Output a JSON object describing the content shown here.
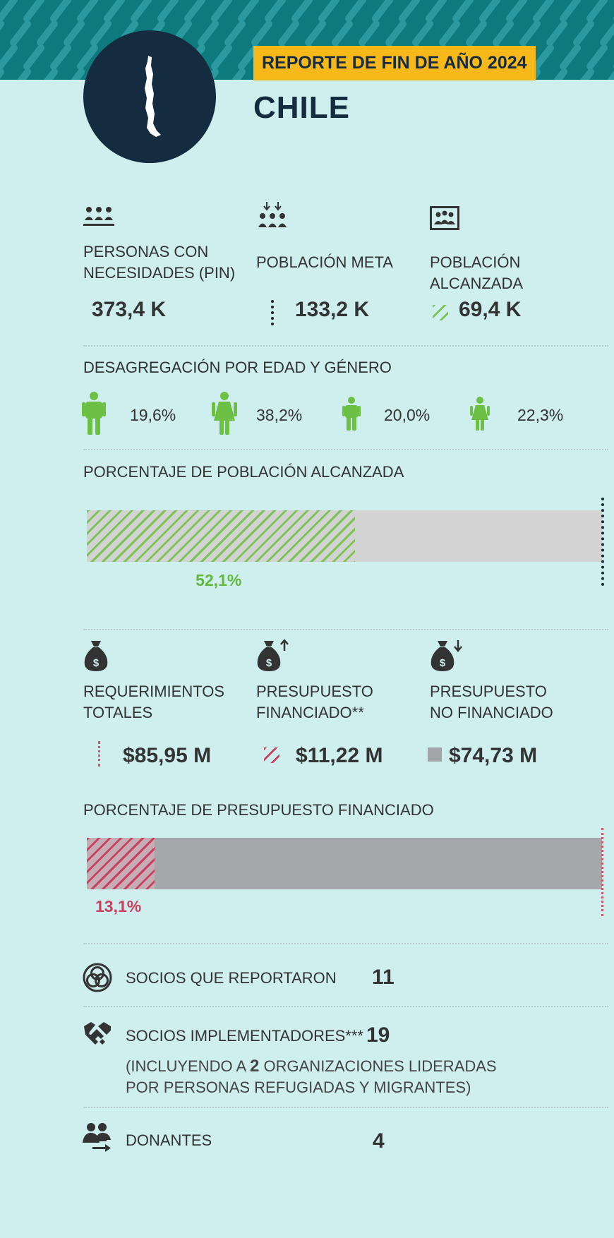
{
  "header": {
    "report_tag": "REPORTE DE FIN DE AÑO 2024",
    "country": "CHILE",
    "colors": {
      "banner": "#0f7a7e",
      "circle": "#142b40",
      "tag": "#f7b919"
    }
  },
  "population": {
    "pin": {
      "label_line1": "PERSONAS CON",
      "label_line2": "NECESIDADES (PIN)",
      "value": "373,4 K",
      "icon": "people-group-icon"
    },
    "target": {
      "label": "POBLACIÓN META",
      "value": "133,2 K",
      "icon": "target-people-icon"
    },
    "reached": {
      "label": "POBLACIÓN ALCANZADA",
      "value": "69,4 K",
      "icon": "reached-people-icon"
    }
  },
  "disaggregation": {
    "title": "DESAGREGACIÓN POR EDAD Y GÉNERO",
    "items": [
      {
        "icon": "man-icon",
        "value": "19,6%"
      },
      {
        "icon": "woman-icon",
        "value": "38,2%"
      },
      {
        "icon": "boy-icon",
        "value": "20,0%"
      },
      {
        "icon": "girl-icon",
        "value": "22,3%"
      }
    ]
  },
  "reached_bar": {
    "title": "PORCENTAJE DE POBLACIÓN ALCANZADA",
    "label": "52,1%",
    "fraction": 0.521,
    "color": "#7cc356"
  },
  "funding": {
    "total": {
      "label_line1": "REQUERIMIENTOS",
      "label_line2": "TOTALES",
      "value": "$85,95 M",
      "icon": "money-bag-icon"
    },
    "funded": {
      "label_line1": "PRESUPUESTO",
      "label_line2": "FINANCIADO**",
      "value": "$11,22 M",
      "icon": "money-bag-up-icon"
    },
    "unfunded": {
      "label_line1": "PRESUPUESTO",
      "label_line2": "NO FINANCIADO",
      "value": "$74,73 M",
      "icon": "money-bag-down-icon"
    }
  },
  "funding_bar": {
    "title": "PORCENTAJE DE PRESUPUESTO FINANCIADO",
    "label": "13,1%",
    "fraction": 0.131,
    "color": "#c8415f"
  },
  "partners": {
    "reporting": {
      "label": "SOCIOS QUE REPORTARON",
      "value": "11",
      "icon": "partners-circles-icon"
    },
    "implementing": {
      "label": "SOCIOS IMPLEMENTADORES***",
      "value": "19",
      "icon": "handshake-icon",
      "note_prefix": "(INCLUYENDO A ",
      "note_count": "2",
      "note_line1_rest": " ORGANIZACIONES LIDERADAS",
      "note_line2": "POR PERSONAS REFUGIADAS Y MIGRANTES)"
    },
    "donors": {
      "label": "DONANTES",
      "value": "4",
      "icon": "donors-icon"
    }
  }
}
